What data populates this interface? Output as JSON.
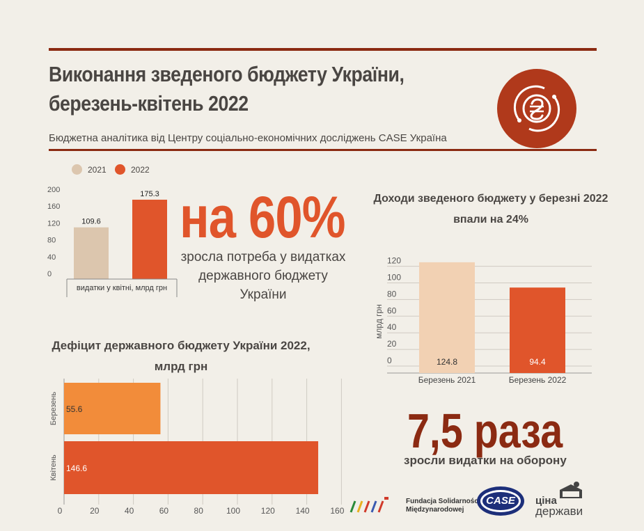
{
  "header": {
    "title_line1": "Виконання зведеного бюджету України,",
    "title_line2": "березень-квітень 2022",
    "subtitle": "Бюджетна аналітика від Центру соціально-економічних досліджень CASE Україна",
    "accent": "#8b2a12",
    "logo_color": "#b0391b",
    "logo_icon": "hryvnia-icon"
  },
  "legend": [
    {
      "label": "2021",
      "color": "#dcc6ae"
    },
    {
      "label": "2022",
      "color": "#e0552b"
    }
  ],
  "highlight1": {
    "big": "на 60%",
    "text": "зросла потреба у видатках державного бюджету України"
  },
  "revenue_title": "Доходи зведеного бюджету у березні 2022 впали на 24%",
  "deficit_title": "Дефіцит державного бюджету України 2022, млрд грн",
  "highlight2": {
    "big": "7,5 раза",
    "text": "зросли видатки на оборону"
  },
  "sponsors": {
    "fundacja_line1": "Fundacja Solidarności",
    "fundacja_line2": "Międzynarodowej",
    "case": "CASE",
    "cina_line1": "ціна",
    "cina_line2": "держави"
  },
  "chart_data": [
    {
      "type": "bar",
      "categories": [
        "видатки у квітні, млрд грн"
      ],
      "series": [
        {
          "name": "2021",
          "values": [
            109.6
          ],
          "color": "#dcc6ae"
        },
        {
          "name": "2022",
          "values": [
            175.3
          ],
          "color": "#e0552b"
        }
      ],
      "yticks": [
        "0",
        "40",
        "80",
        "120",
        "160",
        "200"
      ],
      "ylim": [
        0,
        200
      ]
    },
    {
      "type": "bar",
      "title": "Доходи зведеного бюджету у березні 2022 впали на 24%",
      "categories": [
        "Березень 2021",
        "Березень 2022"
      ],
      "values": [
        124.8,
        94.4
      ],
      "colors": [
        "#f2d1b3",
        "#e0552b"
      ],
      "ylabel": "млрд грн",
      "yticks": [
        "0",
        "20",
        "40",
        "60",
        "80",
        "100",
        "120"
      ],
      "ylim": [
        0,
        130
      ],
      "grid": true
    },
    {
      "type": "bar",
      "orientation": "horizontal",
      "title": "Дефіцит державного бюджету України 2022, млрд грн",
      "categories": [
        "Березень",
        "Квітень"
      ],
      "values": [
        55.6,
        146.6
      ],
      "colors": [
        "#f28c3a",
        "#e0552b"
      ],
      "xticks": [
        "0",
        "20",
        "40",
        "60",
        "80",
        "100",
        "120",
        "140",
        "160"
      ],
      "xlim": [
        0,
        160
      ],
      "grid": true
    }
  ]
}
